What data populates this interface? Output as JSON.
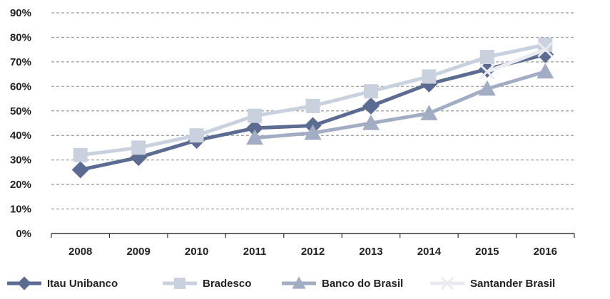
{
  "chart_data": {
    "type": "line",
    "title": "",
    "xlabel": "",
    "ylabel": "",
    "x": [
      "2008",
      "2009",
      "2010",
      "2011",
      "2012",
      "2013",
      "2014",
      "2015",
      "2016"
    ],
    "y_ticks": [
      "0%",
      "10%",
      "20%",
      "30%",
      "40%",
      "50%",
      "60%",
      "70%",
      "80%",
      "90%"
    ],
    "ylim": [
      0,
      90
    ],
    "grid": "horizontal-dashed",
    "legend_position": "bottom",
    "series": [
      {
        "name": "Itau Unibanco",
        "marker": "diamond",
        "color": "#5b6b91",
        "values": [
          26,
          31,
          38,
          43,
          44,
          52,
          61,
          67,
          73
        ]
      },
      {
        "name": "Bradesco",
        "marker": "square",
        "color": "#c9d0de",
        "values": [
          32,
          35,
          40,
          48,
          52,
          58,
          64,
          72,
          77
        ]
      },
      {
        "name": "Banco do Brasil",
        "marker": "triangle",
        "color": "#a2adc4",
        "values": [
          null,
          null,
          null,
          39,
          41,
          45,
          49,
          59,
          66
        ]
      },
      {
        "name": "Santander Brasil",
        "marker": "x",
        "color": "#e9ebf0",
        "values": [
          null,
          null,
          null,
          null,
          null,
          null,
          null,
          66,
          75
        ]
      }
    ]
  }
}
